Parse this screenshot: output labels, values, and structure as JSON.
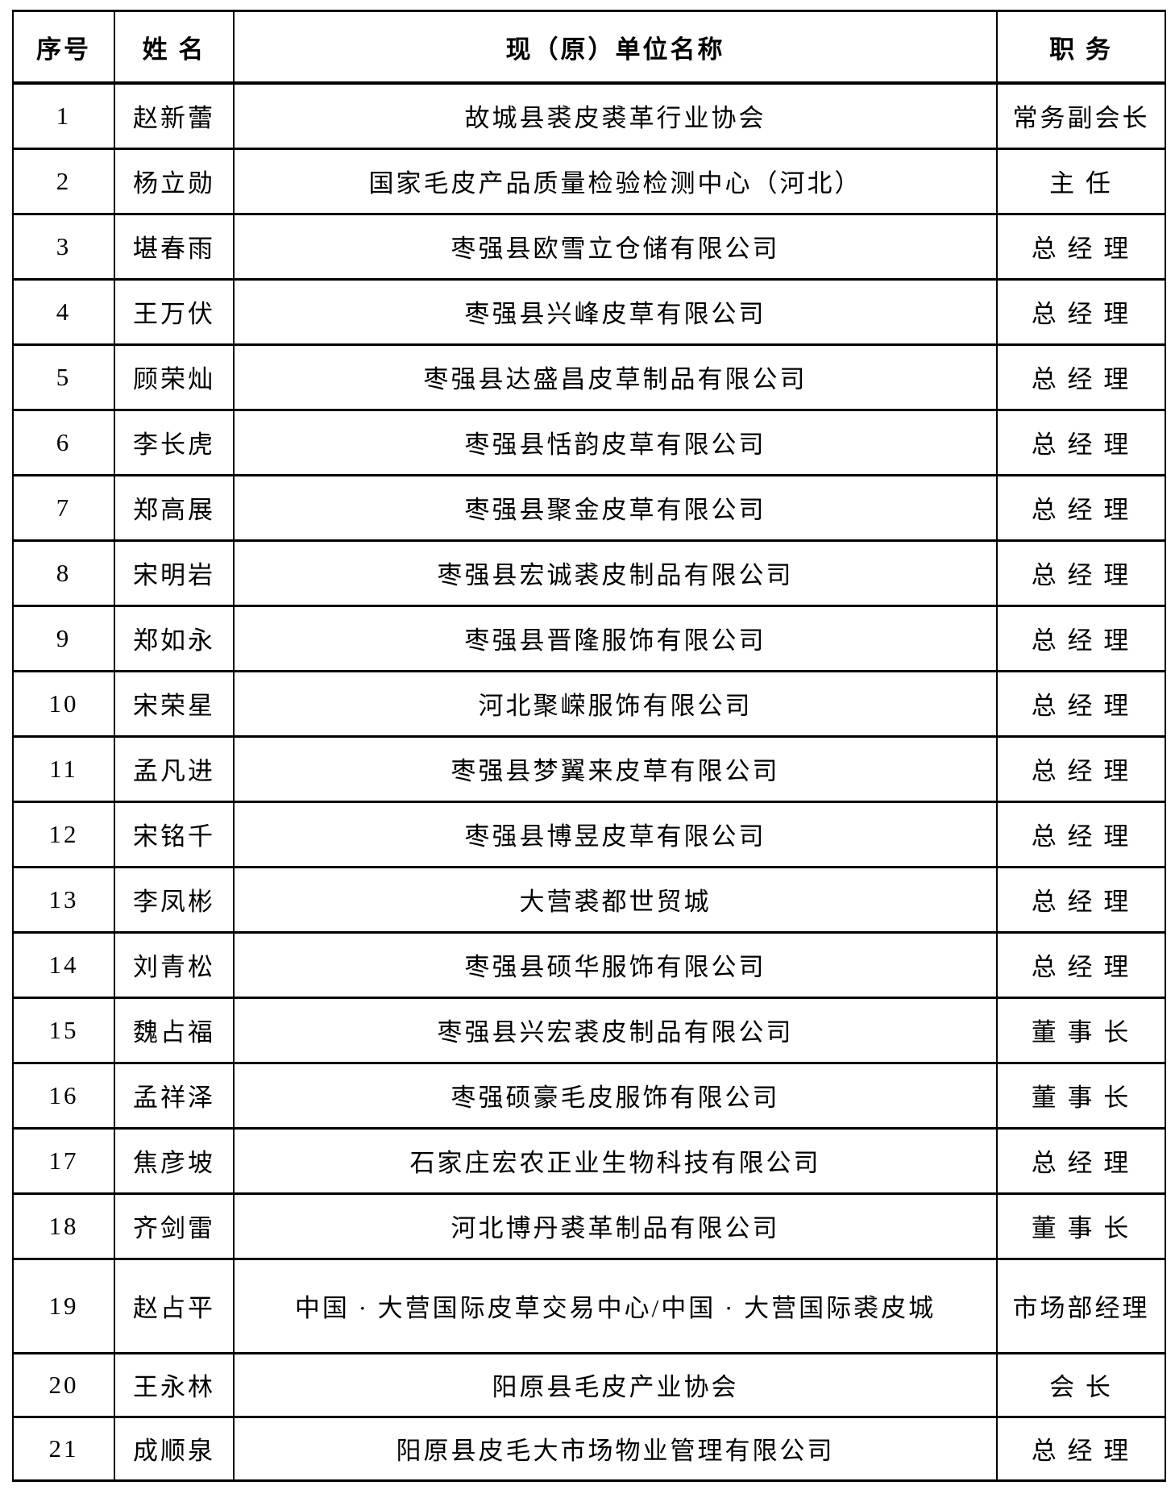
{
  "colors": {
    "background": "#ffffff",
    "text": "#000000",
    "border": "#000000"
  },
  "table": {
    "headers": {
      "index": "序号",
      "name": "姓  名",
      "org": "现（原）单位名称",
      "position": "职 务"
    },
    "rows": [
      {
        "index": "1",
        "name": "赵新蕾",
        "org": "故城县裘皮裘革行业协会",
        "position": "常务副会长"
      },
      {
        "index": "2",
        "name": "杨立勋",
        "org": "国家毛皮产品质量检验检测中心（河北）",
        "position": "主 任"
      },
      {
        "index": "3",
        "name": "堪春雨",
        "org": "枣强县欧雪立仓储有限公司",
        "position": "总 经 理"
      },
      {
        "index": "4",
        "name": "王万伏",
        "org": "枣强县兴峰皮草有限公司",
        "position": "总 经 理"
      },
      {
        "index": "5",
        "name": "顾荣灿",
        "org": "枣强县达盛昌皮草制品有限公司",
        "position": "总 经 理"
      },
      {
        "index": "6",
        "name": "李长虎",
        "org": "枣强县恬韵皮草有限公司",
        "position": "总 经 理"
      },
      {
        "index": "7",
        "name": "郑高展",
        "org": "枣强县聚金皮草有限公司",
        "position": "总 经 理"
      },
      {
        "index": "8",
        "name": "宋明岩",
        "org": "枣强县宏诚裘皮制品有限公司",
        "position": "总 经 理"
      },
      {
        "index": "9",
        "name": "郑如永",
        "org": "枣强县晋隆服饰有限公司",
        "position": "总 经 理"
      },
      {
        "index": "10",
        "name": "宋荣星",
        "org": "河北聚嵘服饰有限公司",
        "position": "总 经 理"
      },
      {
        "index": "11",
        "name": "孟凡进",
        "org": "枣强县梦翼来皮草有限公司",
        "position": "总 经 理"
      },
      {
        "index": "12",
        "name": "宋铭千",
        "org": "枣强县博昱皮草有限公司",
        "position": "总 经 理"
      },
      {
        "index": "13",
        "name": "李凤彬",
        "org": "大营裘都世贸城",
        "position": "总 经 理"
      },
      {
        "index": "14",
        "name": "刘青松",
        "org": "枣强县硕华服饰有限公司",
        "position": "总 经 理"
      },
      {
        "index": "15",
        "name": "魏占福",
        "org": "枣强县兴宏裘皮制品有限公司",
        "position": "董 事 长"
      },
      {
        "index": "16",
        "name": "孟祥泽",
        "org": "枣强硕豪毛皮服饰有限公司",
        "position": "董 事 长"
      },
      {
        "index": "17",
        "name": "焦彦坡",
        "org": "石家庄宏农正业生物科技有限公司",
        "position": "总 经 理"
      },
      {
        "index": "18",
        "name": "齐剑雷",
        "org": "河北博丹裘革制品有限公司",
        "position": "董 事 长"
      },
      {
        "index": "19",
        "name": "赵占平",
        "org": "中国 · 大营国际皮草交易中心/中国 · 大营国际裘皮城",
        "position": "市场部经理",
        "tall": true
      },
      {
        "index": "20",
        "name": "王永林",
        "org": "阳原县毛皮产业协会",
        "position": "会 长"
      },
      {
        "index": "21",
        "name": "成顺泉",
        "org": "阳原县皮毛大市场物业管理有限公司",
        "position": "总 经 理"
      }
    ]
  }
}
